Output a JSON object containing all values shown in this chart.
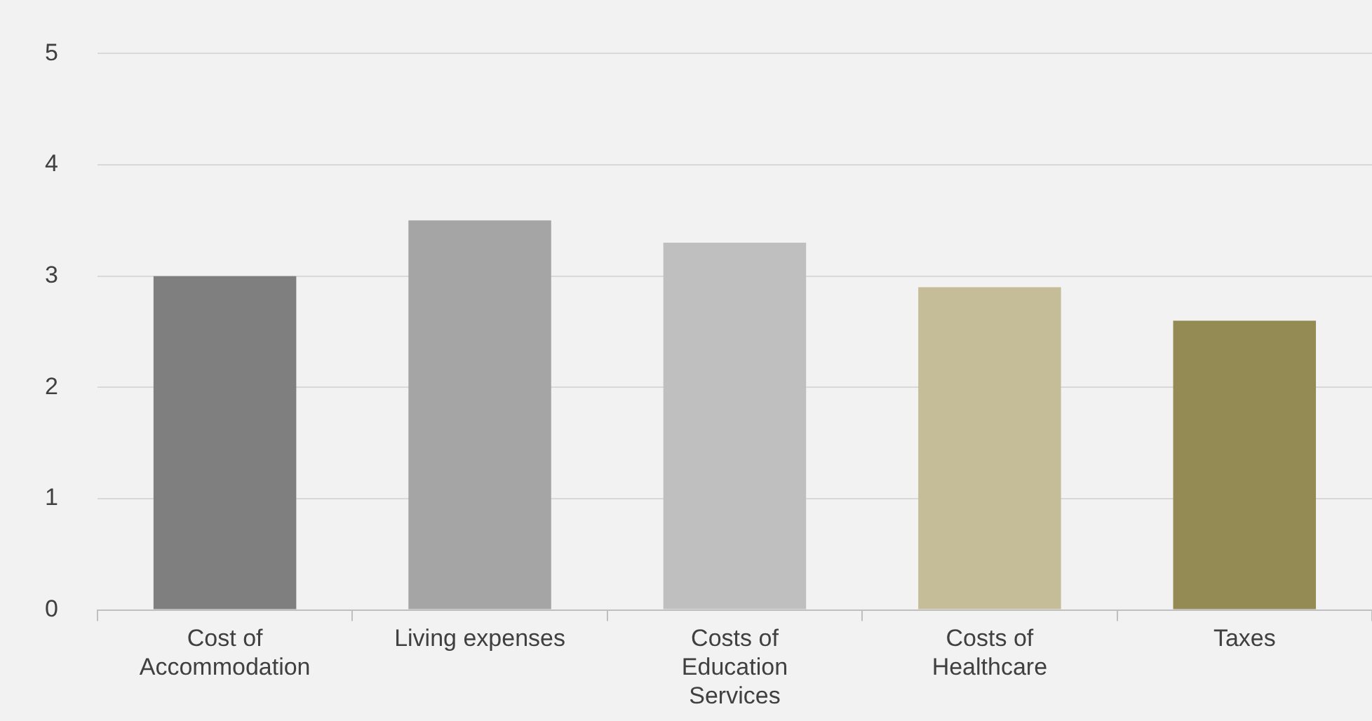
{
  "chart_data": {
    "type": "bar",
    "categories": [
      "Cost of Accommodation",
      "Living expenses",
      "Costs of Education Services",
      "Costs of Healthcare",
      "Taxes"
    ],
    "values": [
      3.0,
      3.5,
      3.3,
      2.9,
      2.6
    ],
    "colors": [
      "#7f7f7f",
      "#a5a5a5",
      "#bfbfbf",
      "#c4bd97",
      "#948a54"
    ],
    "ylim": [
      0,
      5
    ],
    "yticks": [
      0,
      1,
      2,
      3,
      4,
      5
    ],
    "grid": "y",
    "legend": false
  }
}
